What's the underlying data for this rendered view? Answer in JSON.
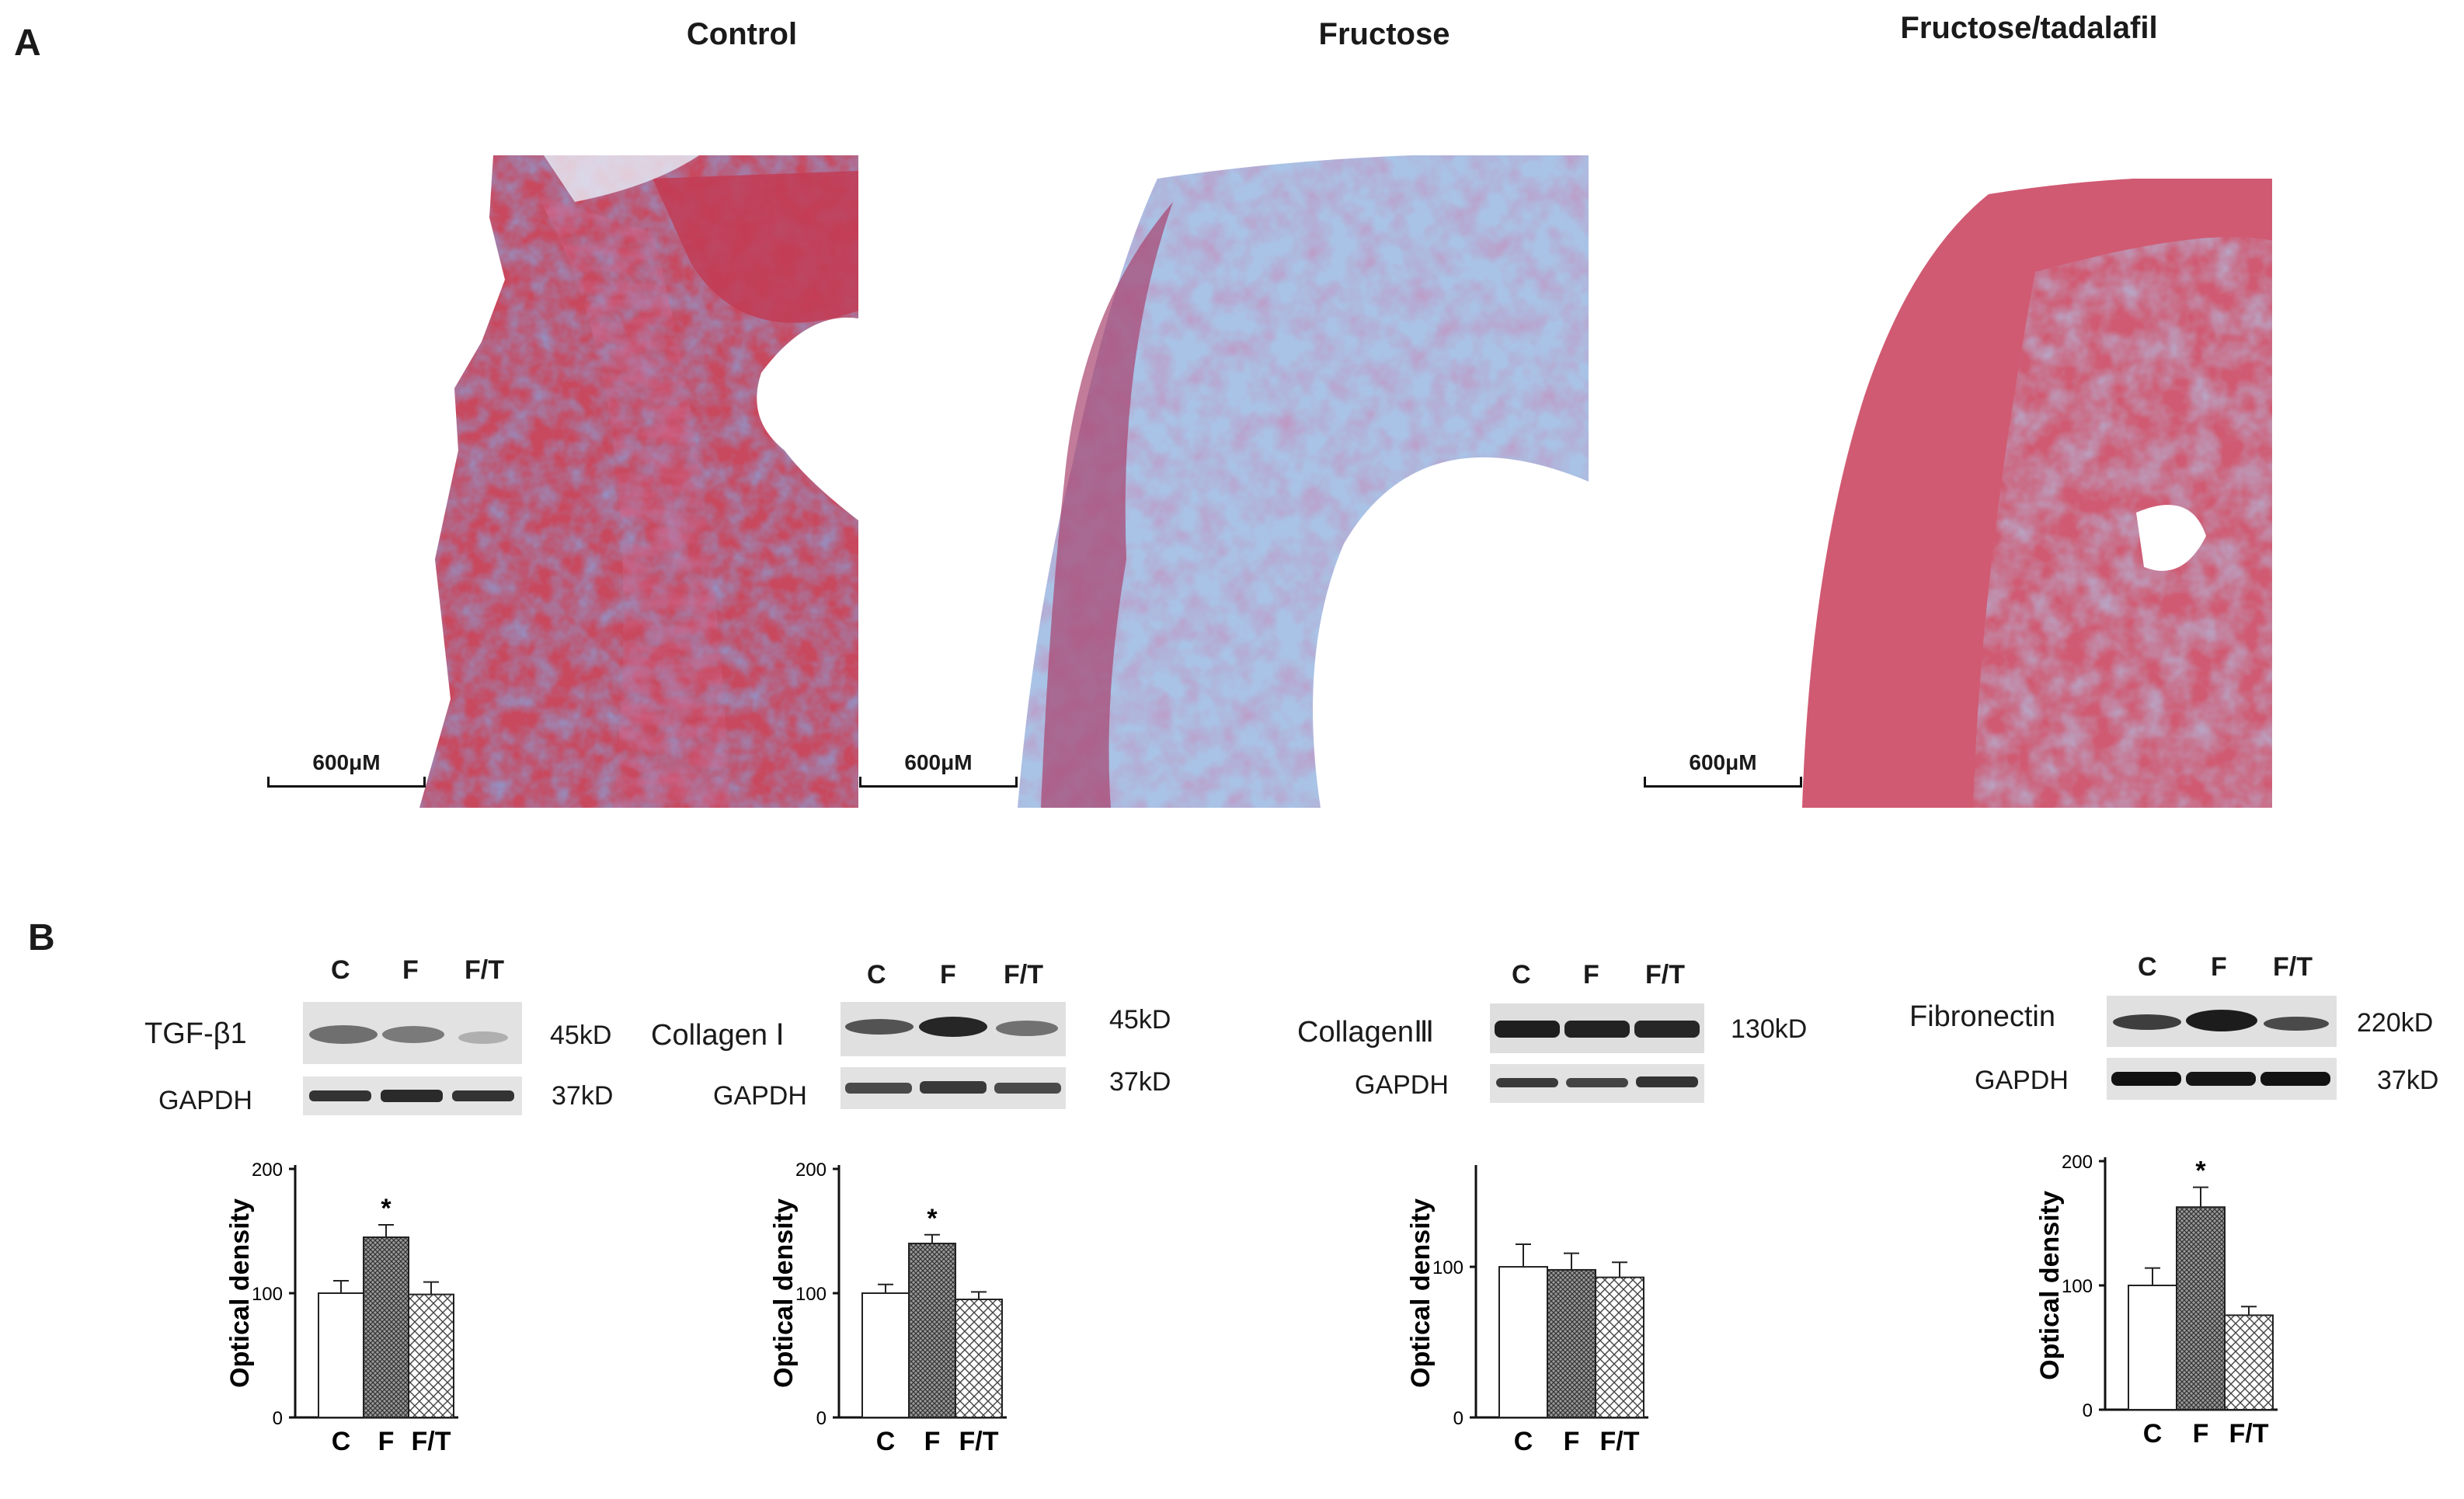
{
  "panel_a": {
    "letter": "A",
    "columns": [
      {
        "title": "Control",
        "scale": "600μM"
      },
      {
        "title": "Fructose",
        "scale": "600μM"
      },
      {
        "title": "Fructose/tadalafil",
        "scale": "600μM"
      }
    ]
  },
  "panel_b": {
    "letter": "B",
    "blots": [
      {
        "protein": "TGF-β1",
        "lanes": [
          "C",
          "F",
          "F/T"
        ],
        "kd": "45kD",
        "loading": "GAPDH",
        "loading_kd": "37kD"
      },
      {
        "protein": "Collagen Ⅰ",
        "lanes": [
          "C",
          "F",
          "F/T"
        ],
        "kd": "45kD",
        "loading": "GAPDH",
        "loading_kd": "37kD"
      },
      {
        "protein": "CollagenⅢ",
        "lanes": [
          "C",
          "F",
          "F/T"
        ],
        "kd": "130kD",
        "loading": "GAPDH",
        "loading_kd": ""
      },
      {
        "protein": "Fibronectin",
        "lanes": [
          "C",
          "F",
          "F/T"
        ],
        "kd": "220kD",
        "loading": "GAPDH",
        "loading_kd": "37kD"
      }
    ]
  },
  "colors": {
    "muscle": "#c8485e",
    "collagen": "#3f6fc4",
    "bar_edge": "#222222"
  },
  "chart_data": [
    {
      "type": "bar",
      "categories": [
        "C",
        "F",
        "F/T"
      ],
      "values": [
        100,
        145,
        99
      ],
      "errors": [
        10,
        10,
        10
      ],
      "ylabel": "Optical density",
      "yticks": [
        0,
        100,
        200
      ],
      "ylim": [
        0,
        200
      ],
      "annotations": [
        {
          "category": "F",
          "text": "*"
        }
      ]
    },
    {
      "type": "bar",
      "categories": [
        "C",
        "F",
        "F/T"
      ],
      "values": [
        100,
        140,
        95
      ],
      "errors": [
        7,
        7,
        6
      ],
      "ylabel": "Optical density",
      "yticks": [
        0,
        100,
        200
      ],
      "ylim": [
        0,
        200
      ],
      "annotations": [
        {
          "category": "F",
          "text": "*"
        }
      ]
    },
    {
      "type": "bar",
      "categories": [
        "C",
        "F",
        "F/T"
      ],
      "values": [
        100,
        98,
        93
      ],
      "errors": [
        15,
        11,
        10
      ],
      "ylabel": "Optical density",
      "yticks": [
        0,
        100
      ],
      "ylim": [
        0,
        165
      ],
      "annotations": []
    },
    {
      "type": "bar",
      "categories": [
        "C",
        "F",
        "F/T"
      ],
      "values": [
        100,
        163,
        76
      ],
      "errors": [
        14,
        16,
        7
      ],
      "ylabel": "Optical density",
      "yticks": [
        0,
        100,
        200
      ],
      "ylim": [
        0,
        200
      ],
      "annotations": [
        {
          "category": "F",
          "text": "*"
        }
      ]
    }
  ]
}
